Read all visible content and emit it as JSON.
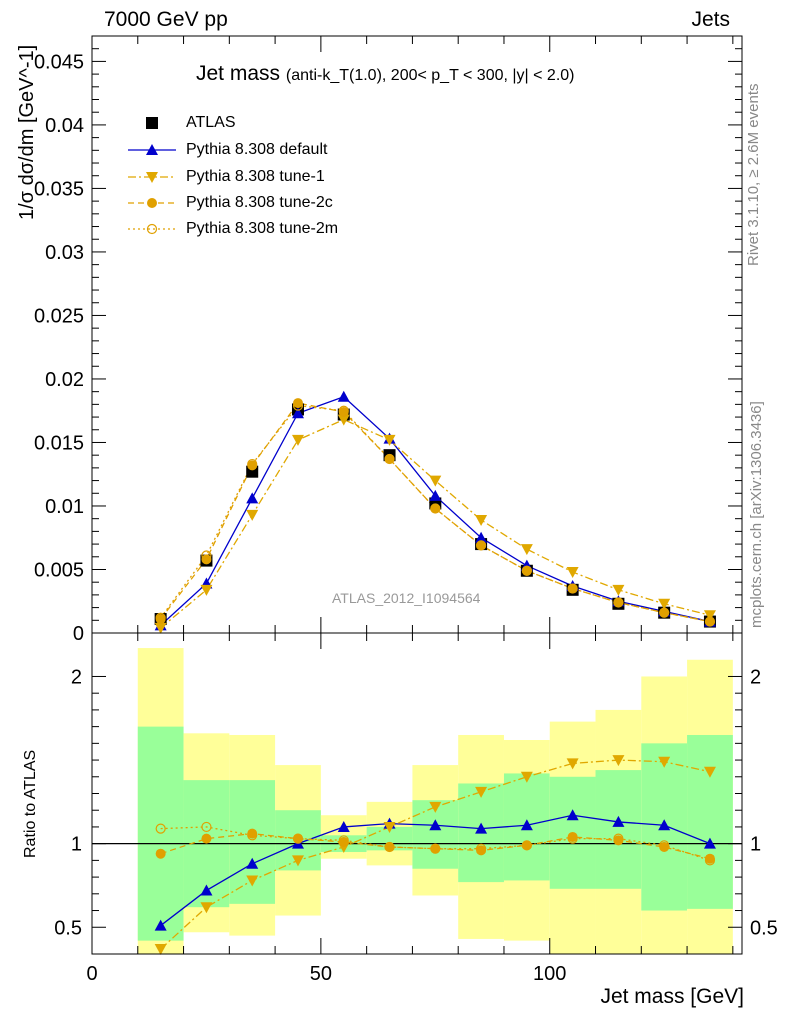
{
  "header": {
    "left": "7000 GeV pp",
    "right": "Jets"
  },
  "plot_title": {
    "main": "Jet mass",
    "detail": "(anti-k_T(1.0), 200< p_T < 300, |y| < 2.0)"
  },
  "side_labels": {
    "rivet": "Rivet 3.1.10, ≥ 2.6M events",
    "source": "mcplots.cern.ch [arXiv:1306.3436]"
  },
  "analysis_label": "ATLAS_2012_I1094564",
  "chart_data": [
    {
      "type": "line",
      "panel": "main",
      "ylabel": "1/σ dσ/dm [GeV^-1]",
      "xlim": [
        0,
        142
      ],
      "ylim": [
        0,
        0.047
      ],
      "yticks": [
        "0",
        "0.005",
        "0.01",
        "0.015",
        "0.02",
        "0.025",
        "0.03",
        "0.035",
        "0.04",
        "0.045"
      ],
      "x": [
        15,
        25,
        35,
        45,
        55,
        65,
        75,
        85,
        95,
        105,
        115,
        125,
        135
      ],
      "series": [
        {
          "name": "ATLAS",
          "color": "#000000",
          "marker": "square",
          "values": [
            0.0011,
            0.0057,
            0.0127,
            0.0176,
            0.0172,
            0.014,
            0.0102,
            0.007,
            0.0049,
            0.0034,
            0.0023,
            0.0016,
            0.0009
          ]
        },
        {
          "name": "Pythia 8.308 default",
          "color": "#0000cc",
          "marker": "triangle-up",
          "line": "solid",
          "values": [
            0.0006,
            0.0039,
            0.0106,
            0.0173,
            0.0186,
            0.0153,
            0.0108,
            0.0075,
            0.0053,
            0.0037,
            0.0025,
            0.0017,
            0.0009
          ]
        },
        {
          "name": "Pythia 8.308 tune-1",
          "color": "#e0a800",
          "marker": "triangle-down",
          "line": "dashdot",
          "values": [
            0.0004,
            0.0034,
            0.0093,
            0.0152,
            0.0168,
            0.0152,
            0.012,
            0.0089,
            0.0066,
            0.0048,
            0.0034,
            0.0023,
            0.0014
          ]
        },
        {
          "name": "Pythia 8.308 tune-2c",
          "color": "#e0a000",
          "marker": "circle",
          "line": "dashed",
          "values": [
            0.0011,
            0.0058,
            0.0132,
            0.0181,
            0.0174,
            0.0137,
            0.0098,
            0.0069,
            0.0049,
            0.0035,
            0.0024,
            0.0016,
            0.0009
          ]
        },
        {
          "name": "Pythia 8.308 tune-2m",
          "color": "#e0a000",
          "marker": "circle-open",
          "line": "dotted",
          "values": [
            0.0012,
            0.0061,
            0.0133,
            0.0179,
            0.0175,
            0.0137,
            0.0098,
            0.0069,
            0.0049,
            0.0035,
            0.0024,
            0.0016,
            0.0009
          ]
        }
      ]
    },
    {
      "type": "line",
      "panel": "ratio",
      "ylabel": "Ratio to ATLAS",
      "xlabel": "Jet mass [GeV]",
      "xlim": [
        0,
        142
      ],
      "ylim": [
        0.34,
        2.26
      ],
      "yticks": [
        "0.5",
        "1",
        "2"
      ],
      "xticks": [
        "0",
        "50",
        "100"
      ],
      "bins": [
        [
          10,
          20
        ],
        [
          20,
          30
        ],
        [
          30,
          40
        ],
        [
          40,
          50
        ],
        [
          50,
          60
        ],
        [
          60,
          70
        ],
        [
          70,
          80
        ],
        [
          80,
          90
        ],
        [
          90,
          100
        ],
        [
          100,
          110
        ],
        [
          110,
          120
        ],
        [
          120,
          130
        ],
        [
          130,
          140
        ]
      ],
      "band_stat": {
        "color": "#99ff99",
        "lo": [
          0.42,
          0.62,
          0.64,
          0.84,
          0.95,
          0.96,
          0.85,
          0.77,
          0.78,
          0.73,
          0.73,
          0.6,
          0.61
        ],
        "hi": [
          1.7,
          1.38,
          1.38,
          1.2,
          1.05,
          1.1,
          1.26,
          1.36,
          1.42,
          1.4,
          1.44,
          1.6,
          1.65
        ]
      },
      "band_total": {
        "color": "#ffff99",
        "lo": [
          0.34,
          0.47,
          0.45,
          0.57,
          0.91,
          0.87,
          0.69,
          0.43,
          0.42,
          0.34,
          0.34,
          0.34,
          0.34
        ],
        "hi": [
          2.17,
          1.66,
          1.65,
          1.47,
          1.17,
          1.25,
          1.47,
          1.65,
          1.62,
          1.73,
          1.8,
          2.0,
          2.1
        ]
      },
      "x": [
        15,
        25,
        35,
        45,
        55,
        65,
        75,
        85,
        95,
        105,
        115,
        125,
        135
      ],
      "series": [
        {
          "name": "Pythia 8.308 default",
          "color": "#0000cc",
          "marker": "triangle-up",
          "line": "solid",
          "values": [
            0.51,
            0.72,
            0.88,
            1.0,
            1.1,
            1.12,
            1.11,
            1.09,
            1.11,
            1.17,
            1.13,
            1.11,
            1.0
          ]
        },
        {
          "name": "Pythia 8.308 tune-1",
          "color": "#e0a800",
          "marker": "triangle-down",
          "line": "dashdot",
          "values": [
            0.37,
            0.62,
            0.78,
            0.9,
            0.98,
            1.1,
            1.22,
            1.31,
            1.4,
            1.48,
            1.5,
            1.49,
            1.43
          ]
        },
        {
          "name": "Pythia 8.308 tune-2c",
          "color": "#e0a000",
          "marker": "circle",
          "line": "dashed",
          "values": [
            0.94,
            1.03,
            1.06,
            1.03,
            1.01,
            0.98,
            0.97,
            0.96,
            0.99,
            1.04,
            1.02,
            0.98,
            0.91
          ]
        },
        {
          "name": "Pythia 8.308 tune-2m",
          "color": "#e0a000",
          "marker": "circle-open",
          "line": "dotted",
          "values": [
            1.09,
            1.1,
            1.05,
            1.03,
            1.02,
            0.98,
            0.97,
            0.97,
            0.99,
            1.03,
            1.03,
            0.99,
            0.9
          ]
        }
      ]
    }
  ]
}
